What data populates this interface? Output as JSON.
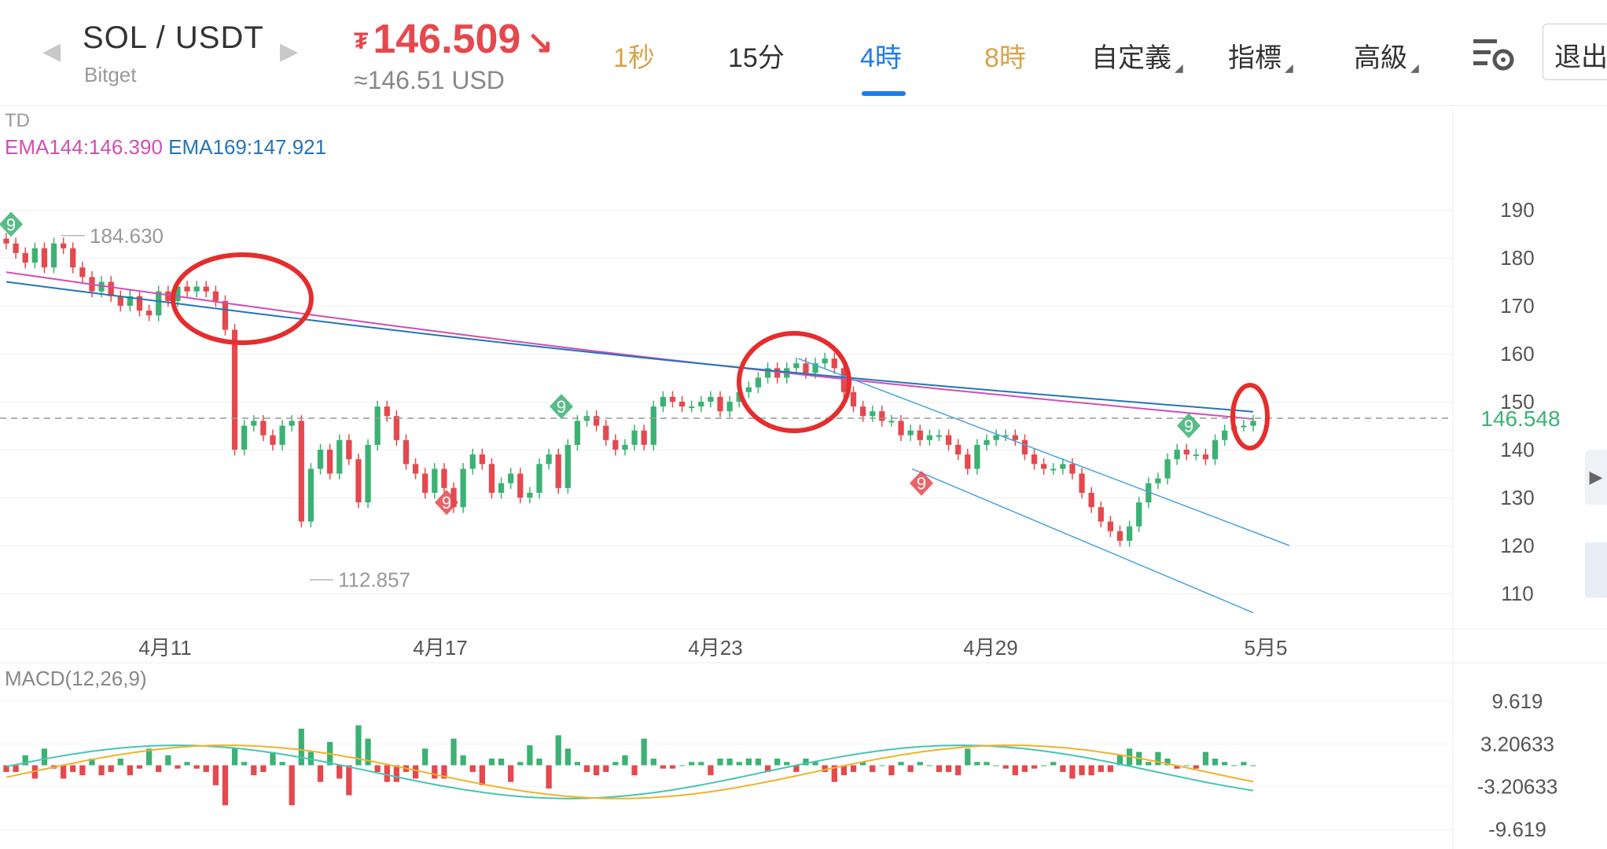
{
  "header": {
    "pair": "SOL / USDT",
    "exchange": "Bitget",
    "price": "146.509",
    "price_currency_symbol": "₮",
    "price_arrow": "↘",
    "usd_equiv": "≈146.51 USD",
    "colors": {
      "down": "#e5484d",
      "active": "#1e7ce8",
      "gold": "#d6a44c"
    }
  },
  "tabs": [
    {
      "label": "1秒",
      "state": "gold"
    },
    {
      "label": "15分",
      "state": "normal"
    },
    {
      "label": "4時",
      "state": "active"
    },
    {
      "label": "8時",
      "state": "gold"
    },
    {
      "label": "自定義",
      "state": "dropdown"
    },
    {
      "label": "指標",
      "state": "dropdown"
    },
    {
      "label": "高級",
      "state": "dropdown"
    }
  ],
  "exit_label": "退出",
  "legend": {
    "td": "TD",
    "ema144": "EMA144:146.390",
    "ema169": "EMA169:147.921"
  },
  "macd_label": "MACD(12,26,9)",
  "chart_data": {
    "type": "candlestick",
    "x_labels": [
      "4月11",
      "4月17",
      "4月23",
      "4月29",
      "5月5"
    ],
    "y_ticks": [
      190,
      180,
      170,
      160,
      150,
      140,
      130,
      120,
      110
    ],
    "ylim": [
      104,
      194
    ],
    "current_price": 146.548,
    "current_price_label": "146.548",
    "annotations": {
      "high": {
        "value": 184.63,
        "label": "184.630"
      },
      "low": {
        "value": 112.857,
        "label": "112.857"
      }
    },
    "ema144_end": 146.39,
    "ema169_end": 147.921,
    "td_markers": [
      "9",
      "9",
      "9",
      "9",
      "9"
    ],
    "macd_ticks": [
      "9.619",
      "3.20633",
      "-3.20633",
      "-9.619"
    ],
    "macd_range": [
      -9.619,
      9.619
    ],
    "colors": {
      "up": "#3bb273",
      "down": "#e5484d",
      "ema144": "#d04fb3",
      "ema169": "#2475b8",
      "dif": "#47c4b3",
      "dea": "#f0b22a",
      "circle": "#e52d2d",
      "channel": "#4aa3df"
    }
  }
}
